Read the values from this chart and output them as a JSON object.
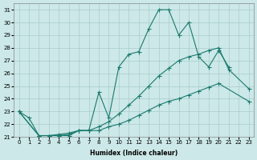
{
  "xlabel": "Humidex (Indice chaleur)",
  "bg_color": "#cce8e8",
  "grid_color": "#aacccc",
  "line_color": "#1a7a6e",
  "xlim": [
    -0.5,
    23.5
  ],
  "ylim": [
    21,
    31.5
  ],
  "xticks": [
    0,
    1,
    2,
    3,
    4,
    5,
    6,
    7,
    8,
    9,
    10,
    11,
    12,
    13,
    14,
    15,
    16,
    17,
    18,
    19,
    20,
    21,
    22,
    23
  ],
  "yticks": [
    21,
    22,
    23,
    24,
    25,
    26,
    27,
    28,
    29,
    30,
    31
  ],
  "line1_x": [
    0,
    1,
    2,
    3,
    4,
    5,
    6,
    7,
    8,
    9,
    10,
    11,
    12,
    13,
    14,
    15,
    16,
    17,
    18,
    19,
    20,
    21
  ],
  "line1_y": [
    23.0,
    22.5,
    21.1,
    21.1,
    21.1,
    21.1,
    21.5,
    21.5,
    24.5,
    22.5,
    26.5,
    27.5,
    27.7,
    29.5,
    31.0,
    31.0,
    29.0,
    30.0,
    27.3,
    26.5,
    27.8,
    26.5
  ],
  "line2_x": [
    0,
    2,
    3,
    4,
    5,
    6,
    7,
    8,
    9,
    10,
    11,
    12,
    13,
    14,
    15,
    16,
    17,
    18,
    19,
    20,
    21,
    23
  ],
  "line2_y": [
    23.0,
    21.1,
    21.1,
    21.2,
    21.3,
    21.5,
    21.5,
    21.8,
    22.2,
    22.8,
    23.5,
    24.2,
    25.0,
    25.8,
    26.4,
    27.0,
    27.3,
    27.5,
    27.8,
    28.0,
    26.3,
    24.8
  ],
  "line3_x": [
    0,
    2,
    3,
    4,
    5,
    6,
    7,
    8,
    9,
    10,
    11,
    12,
    13,
    14,
    15,
    16,
    17,
    18,
    19,
    20,
    23
  ],
  "line3_y": [
    23.0,
    21.1,
    21.1,
    21.1,
    21.2,
    21.5,
    21.5,
    21.5,
    21.8,
    22.0,
    22.3,
    22.7,
    23.1,
    23.5,
    23.8,
    24.0,
    24.3,
    24.6,
    24.9,
    25.2,
    23.8
  ]
}
